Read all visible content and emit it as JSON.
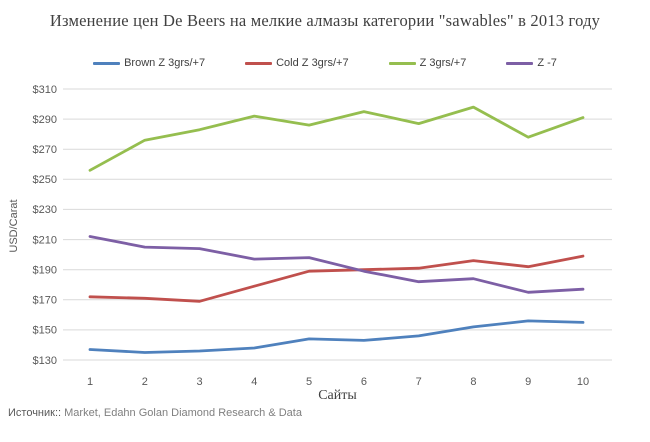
{
  "title": "Изменение цен De Beers на мелкие алмазы категории \"sawables\" в 2013 году",
  "source": {
    "label": "Источник::",
    "text": " Market, Edahn Golan Diamond Research & Data"
  },
  "colors": {
    "gridline": "#d9d9d9",
    "title_text": "#404040",
    "tick_text": "#595959",
    "source_text": "#7f7f7f"
  },
  "chart_data": {
    "type": "line",
    "title": "Изменение цен De Beers на мелкие алмазы категории \"sawables\" в 2013 году",
    "xlabel": "Сайты",
    "ylabel": "USD/Carat",
    "x": [
      1,
      2,
      3,
      4,
      5,
      6,
      7,
      8,
      9,
      10
    ],
    "ylim": [
      130,
      310
    ],
    "ytick_step": 20,
    "ytick_prefix": "$",
    "grid": true,
    "legend_position": "top",
    "series": [
      {
        "name": "Brown Z 3grs/+7",
        "color": "#4F81BD",
        "values": [
          137,
          135,
          136,
          138,
          144,
          143,
          146,
          152,
          156,
          155
        ]
      },
      {
        "name": "Cold Z 3grs/+7",
        "color": "#C0504D",
        "values": [
          172,
          171,
          169,
          179,
          189,
          190,
          191,
          196,
          192,
          199
        ]
      },
      {
        "name": "Z 3grs/+7",
        "color": "#95BE4F",
        "values": [
          256,
          276,
          283,
          292,
          286,
          295,
          287,
          298,
          278,
          291
        ]
      },
      {
        "name": "Z -7",
        "color": "#7D5FA5",
        "values": [
          212,
          205,
          204,
          197,
          198,
          189,
          182,
          184,
          175,
          177
        ]
      }
    ]
  }
}
